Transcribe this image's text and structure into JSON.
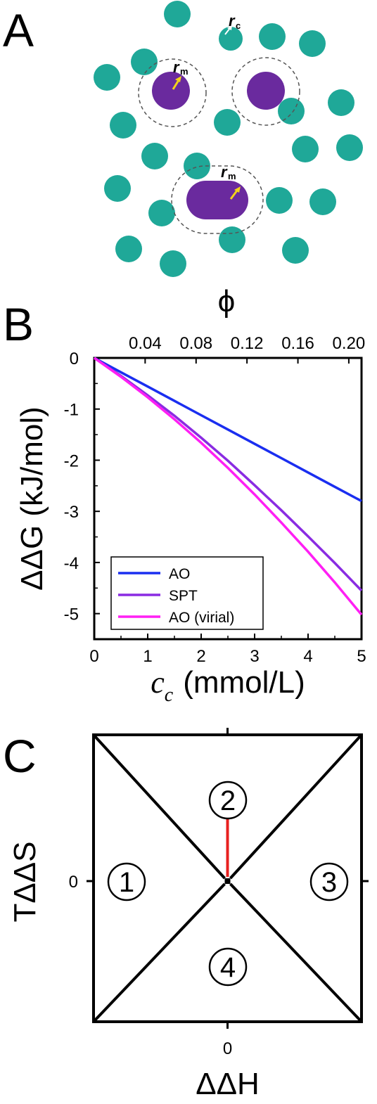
{
  "panels": {
    "a": {
      "label": "A"
    },
    "b": {
      "label": "B"
    },
    "c": {
      "label": "C"
    }
  },
  "colors": {
    "crowder": "#1fa898",
    "macromolecule": "#6a2a9e",
    "arrow": "#f2d21b",
    "frame": "#000000",
    "red_line": "#e8201f"
  },
  "panel_a": {
    "r_letter": "r",
    "crowder_subscript": "c",
    "macro_subscript": "m"
  },
  "chart_data": [
    {
      "type": "line",
      "xlabel_symbol": "c",
      "xlabel_sub": "c",
      "xlabel_unit": "(mmol/L)",
      "ylabel": "ΔΔG (kJ/mol)",
      "top_axis_label": "ϕ",
      "xlim": [
        0,
        5
      ],
      "ylim": [
        -5.5,
        0
      ],
      "x_ticks": [
        "0",
        "1",
        "2",
        "3",
        "4",
        "5"
      ],
      "y_ticks": [
        "0",
        "-1",
        "-2",
        "-3",
        "-4",
        "-5"
      ],
      "top_ticks": [
        "0.04",
        "0.08",
        "0.12",
        "0.16",
        "0.20"
      ],
      "top_tick_x": [
        0.952,
        1.905,
        2.857,
        3.81,
        4.762
      ],
      "legend_position": "bottom-left",
      "x": [
        0,
        0.5,
        1,
        1.5,
        2,
        2.5,
        3,
        3.5,
        4,
        4.5,
        5
      ],
      "series": [
        {
          "name": "AO",
          "color": "#1a2ef0",
          "values": [
            0,
            -0.28,
            -0.56,
            -0.84,
            -1.12,
            -1.4,
            -1.68,
            -1.96,
            -2.24,
            -2.52,
            -2.8
          ]
        },
        {
          "name": "SPT",
          "color": "#8a2be2",
          "values": [
            0,
            -0.35,
            -0.73,
            -1.13,
            -1.56,
            -2.01,
            -2.49,
            -2.98,
            -3.49,
            -4.01,
            -4.55
          ]
        },
        {
          "name": "AO (virial)",
          "color": "#ff1ff4",
          "values": [
            0,
            -0.37,
            -0.77,
            -1.2,
            -1.66,
            -2.15,
            -2.67,
            -3.22,
            -3.79,
            -4.39,
            -5.02
          ]
        }
      ]
    },
    {
      "type": "diagram",
      "xlabel": "ΔΔH",
      "ylabel": "TΔΔS",
      "x_tick": "0",
      "y_tick": "0",
      "regions": [
        "1",
        "2",
        "3",
        "4"
      ]
    }
  ]
}
